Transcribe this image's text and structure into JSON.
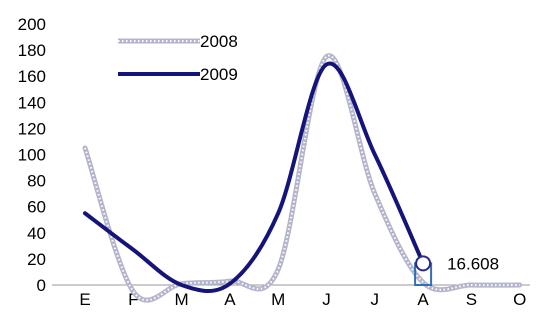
{
  "chart_data": {
    "type": "line",
    "title": "",
    "xlabel": "",
    "ylabel": "",
    "categories": [
      "E",
      "F",
      "M",
      "A",
      "M",
      "J",
      "J",
      "A",
      "S",
      "O"
    ],
    "ylim": [
      0,
      200
    ],
    "yticks": [
      0,
      20,
      40,
      60,
      80,
      100,
      120,
      140,
      160,
      180,
      200
    ],
    "grid": false,
    "legend": "top-left",
    "series": [
      {
        "name": "2008",
        "style": "dotted",
        "color": "#b4b4cc",
        "values": [
          105,
          -5,
          1,
          3,
          12,
          175,
          70,
          2,
          0,
          0
        ]
      },
      {
        "name": "2009",
        "style": "solid",
        "color": "#14147a",
        "values": [
          55,
          27,
          0,
          1,
          55,
          169,
          100,
          16.608,
          null,
          null
        ]
      }
    ],
    "annotations": [
      {
        "series": "2009",
        "category_index": 7,
        "value": 16.608,
        "label": "16.608"
      }
    ]
  }
}
